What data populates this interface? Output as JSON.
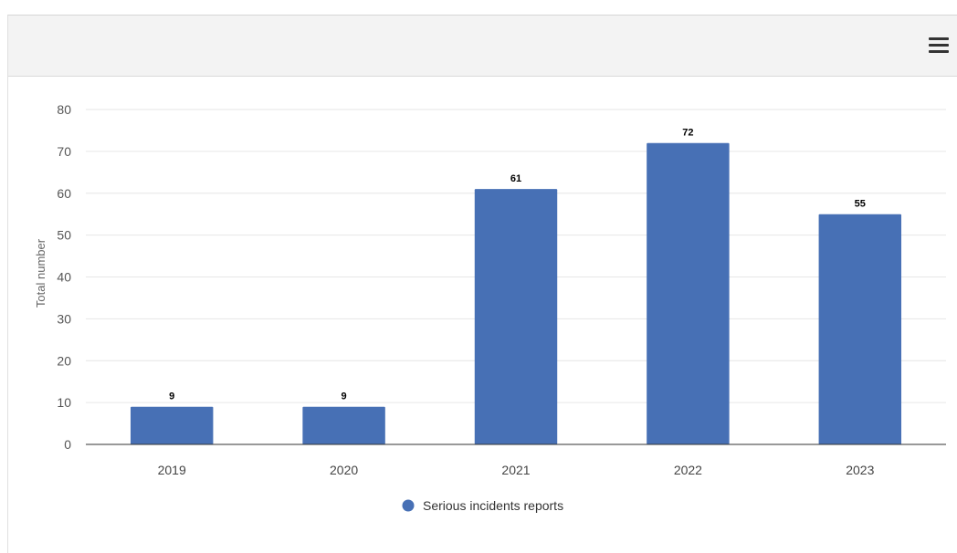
{
  "toolbar": {
    "menu_icon": "hamburger-menu-icon"
  },
  "chart_data": {
    "type": "bar",
    "categories": [
      "2019",
      "2020",
      "2021",
      "2022",
      "2023"
    ],
    "series": [
      {
        "name": "Serious incidents reports",
        "values": [
          9,
          9,
          61,
          72,
          55
        ],
        "color": "#4770b5"
      }
    ],
    "ylabel": "Total number",
    "xlabel": "",
    "ylim": [
      0,
      80
    ],
    "yticks": [
      "0",
      "10",
      "20",
      "30",
      "40",
      "50",
      "60",
      "70",
      "80"
    ],
    "grid": true,
    "legend_position": "bottom-center",
    "data_labels": true
  }
}
